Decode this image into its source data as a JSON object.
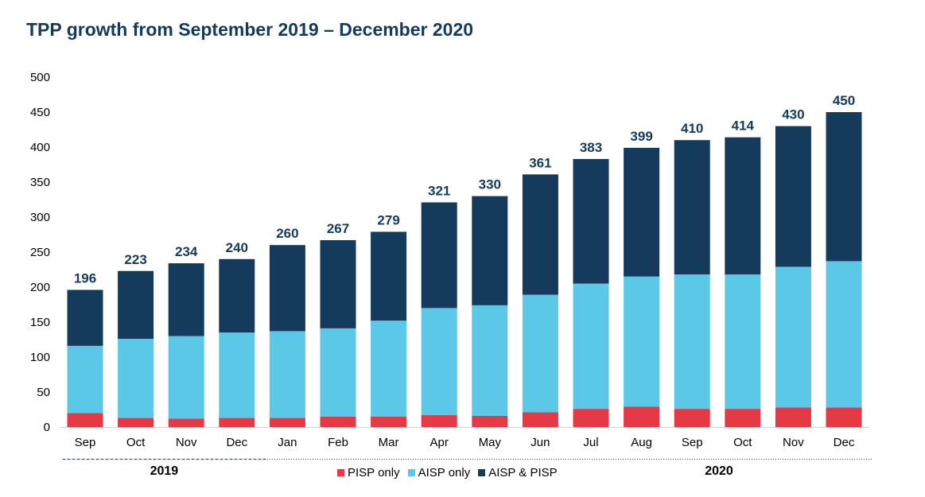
{
  "chart_data": {
    "type": "bar",
    "stacked": true,
    "title": "TPP growth from September 2019 – December 2020",
    "xlabel": "",
    "ylabel": "",
    "ylim": [
      0,
      500
    ],
    "yticks": [
      0,
      50,
      100,
      150,
      200,
      250,
      300,
      350,
      400,
      450,
      500
    ],
    "grid": false,
    "legend_position": "bottom",
    "categories": [
      "Sep",
      "Oct",
      "Nov",
      "Dec",
      "Jan",
      "Feb",
      "Mar",
      "Apr",
      "May",
      "Jun",
      "Jul",
      "Aug",
      "Sep",
      "Oct",
      "Nov",
      "Dec"
    ],
    "year_groups": [
      {
        "label": "2019",
        "categories": [
          "Sep",
          "Oct",
          "Nov",
          "Dec"
        ]
      },
      {
        "label": "2020",
        "categories": [
          "Jan",
          "Feb",
          "Mar",
          "Apr",
          "May",
          "Jun",
          "Jul",
          "Aug",
          "Sep",
          "Oct",
          "Nov",
          "Dec"
        ]
      }
    ],
    "series": [
      {
        "name": "PISP only",
        "color": "#e63946",
        "values": [
          20,
          13,
          12,
          13,
          13,
          15,
          15,
          17,
          16,
          21,
          26,
          29,
          26,
          26,
          28,
          28
        ]
      },
      {
        "name": "AISP only",
        "color": "#5bc8e8",
        "values": [
          96,
          113,
          118,
          122,
          124,
          126,
          137,
          153,
          158,
          168,
          179,
          186,
          192,
          192,
          201,
          209
        ]
      },
      {
        "name": "AISP & PISP",
        "color": "#143a5c",
        "values": [
          80,
          97,
          104,
          105,
          123,
          126,
          127,
          151,
          156,
          172,
          178,
          184,
          192,
          196,
          201,
          213
        ]
      }
    ],
    "totals": [
      196,
      223,
      234,
      240,
      260,
      267,
      279,
      321,
      330,
      361,
      383,
      399,
      410,
      414,
      430,
      450
    ]
  }
}
